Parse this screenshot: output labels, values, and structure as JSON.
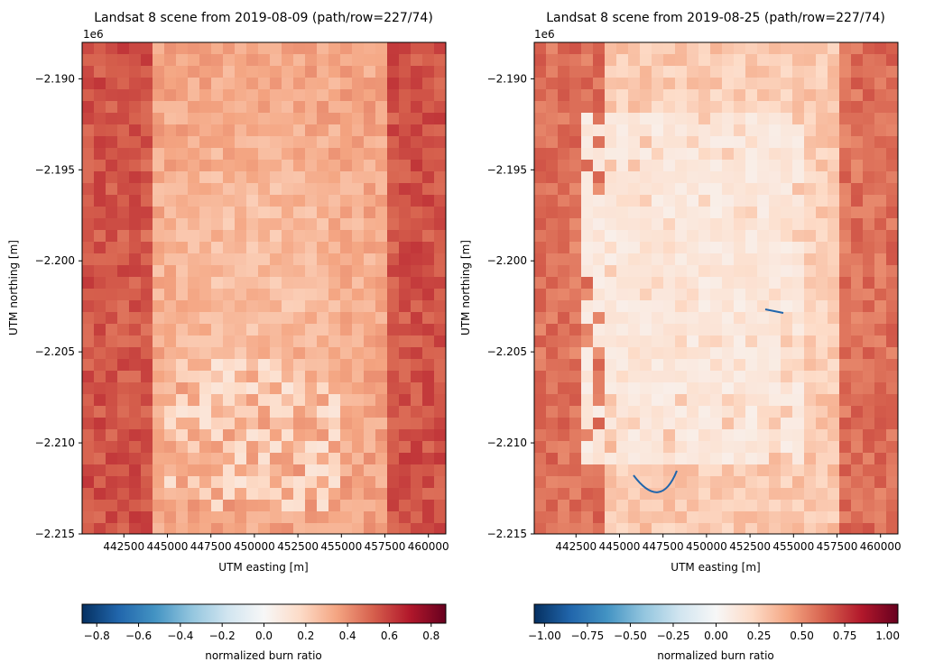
{
  "chart_data": [
    {
      "type": "heatmap",
      "title": "Landsat 8 scene from 2019-08-09 (path/row=227/74)",
      "xlabel": "UTM easting [m]",
      "ylabel": "UTM northing [m]",
      "y_offset_label": "1e6",
      "xlim": [
        440100,
        461000
      ],
      "ylim": [
        -2.215,
        -2.188
      ],
      "x_ticks": [
        442500,
        445000,
        447500,
        450000,
        452500,
        455000,
        457500,
        460000
      ],
      "x_tick_labels": [
        "442500",
        "445000",
        "447500",
        "450000",
        "452500",
        "455000",
        "457500",
        "460000"
      ],
      "y_ticks": [
        -2.19,
        -2.195,
        -2.2,
        -2.205,
        -2.21,
        -2.215
      ],
      "y_tick_labels": [
        "−2.190",
        "−2.195",
        "−2.200",
        "−2.205",
        "−2.210",
        "−2.215"
      ],
      "colormap": "RdBu_r",
      "mostly_reddish": true,
      "colorbar": {
        "label": "normalized burn ratio",
        "orientation": "horizontal",
        "range": [
          -0.87,
          0.87
        ],
        "ticks": [
          -0.8,
          -0.6,
          -0.4,
          -0.2,
          0.0,
          0.2,
          0.4,
          0.6,
          0.8
        ],
        "tick_labels": [
          "−0.8",
          "−0.6",
          "−0.4",
          "−0.2",
          "0.0",
          "0.2",
          "0.4",
          "0.6",
          "0.8"
        ]
      }
    },
    {
      "type": "heatmap",
      "title": "Landsat 8 scene from 2019-08-25 (path/row=227/74)",
      "xlabel": "UTM easting [m]",
      "ylabel": "UTM northing [m]",
      "y_offset_label": "1e6",
      "xlim": [
        440100,
        461000
      ],
      "ylim": [
        -2.215,
        -2.188
      ],
      "x_ticks": [
        442500,
        445000,
        447500,
        450000,
        452500,
        455000,
        457500,
        460000
      ],
      "x_tick_labels": [
        "442500",
        "445000",
        "447500",
        "450000",
        "452500",
        "455000",
        "457500",
        "460000"
      ],
      "y_ticks": [
        -2.19,
        -2.195,
        -2.2,
        -2.205,
        -2.21,
        -2.215
      ],
      "y_tick_labels": [
        "−2.190",
        "−2.195",
        "−2.200",
        "−2.205",
        "−2.210",
        "−2.215"
      ],
      "colormap": "RdBu_r",
      "mostly_reddish": false,
      "colorbar": {
        "label": "normalized burn ratio",
        "orientation": "horizontal",
        "range": [
          -1.06,
          1.06
        ],
        "ticks": [
          -1.0,
          -0.75,
          -0.5,
          -0.25,
          0.0,
          0.25,
          0.5,
          0.75,
          1.0
        ],
        "tick_labels": [
          "−1.00",
          "−0.75",
          "−0.50",
          "−0.25",
          "0.00",
          "0.25",
          "0.50",
          "0.75",
          "1.00"
        ]
      }
    }
  ]
}
